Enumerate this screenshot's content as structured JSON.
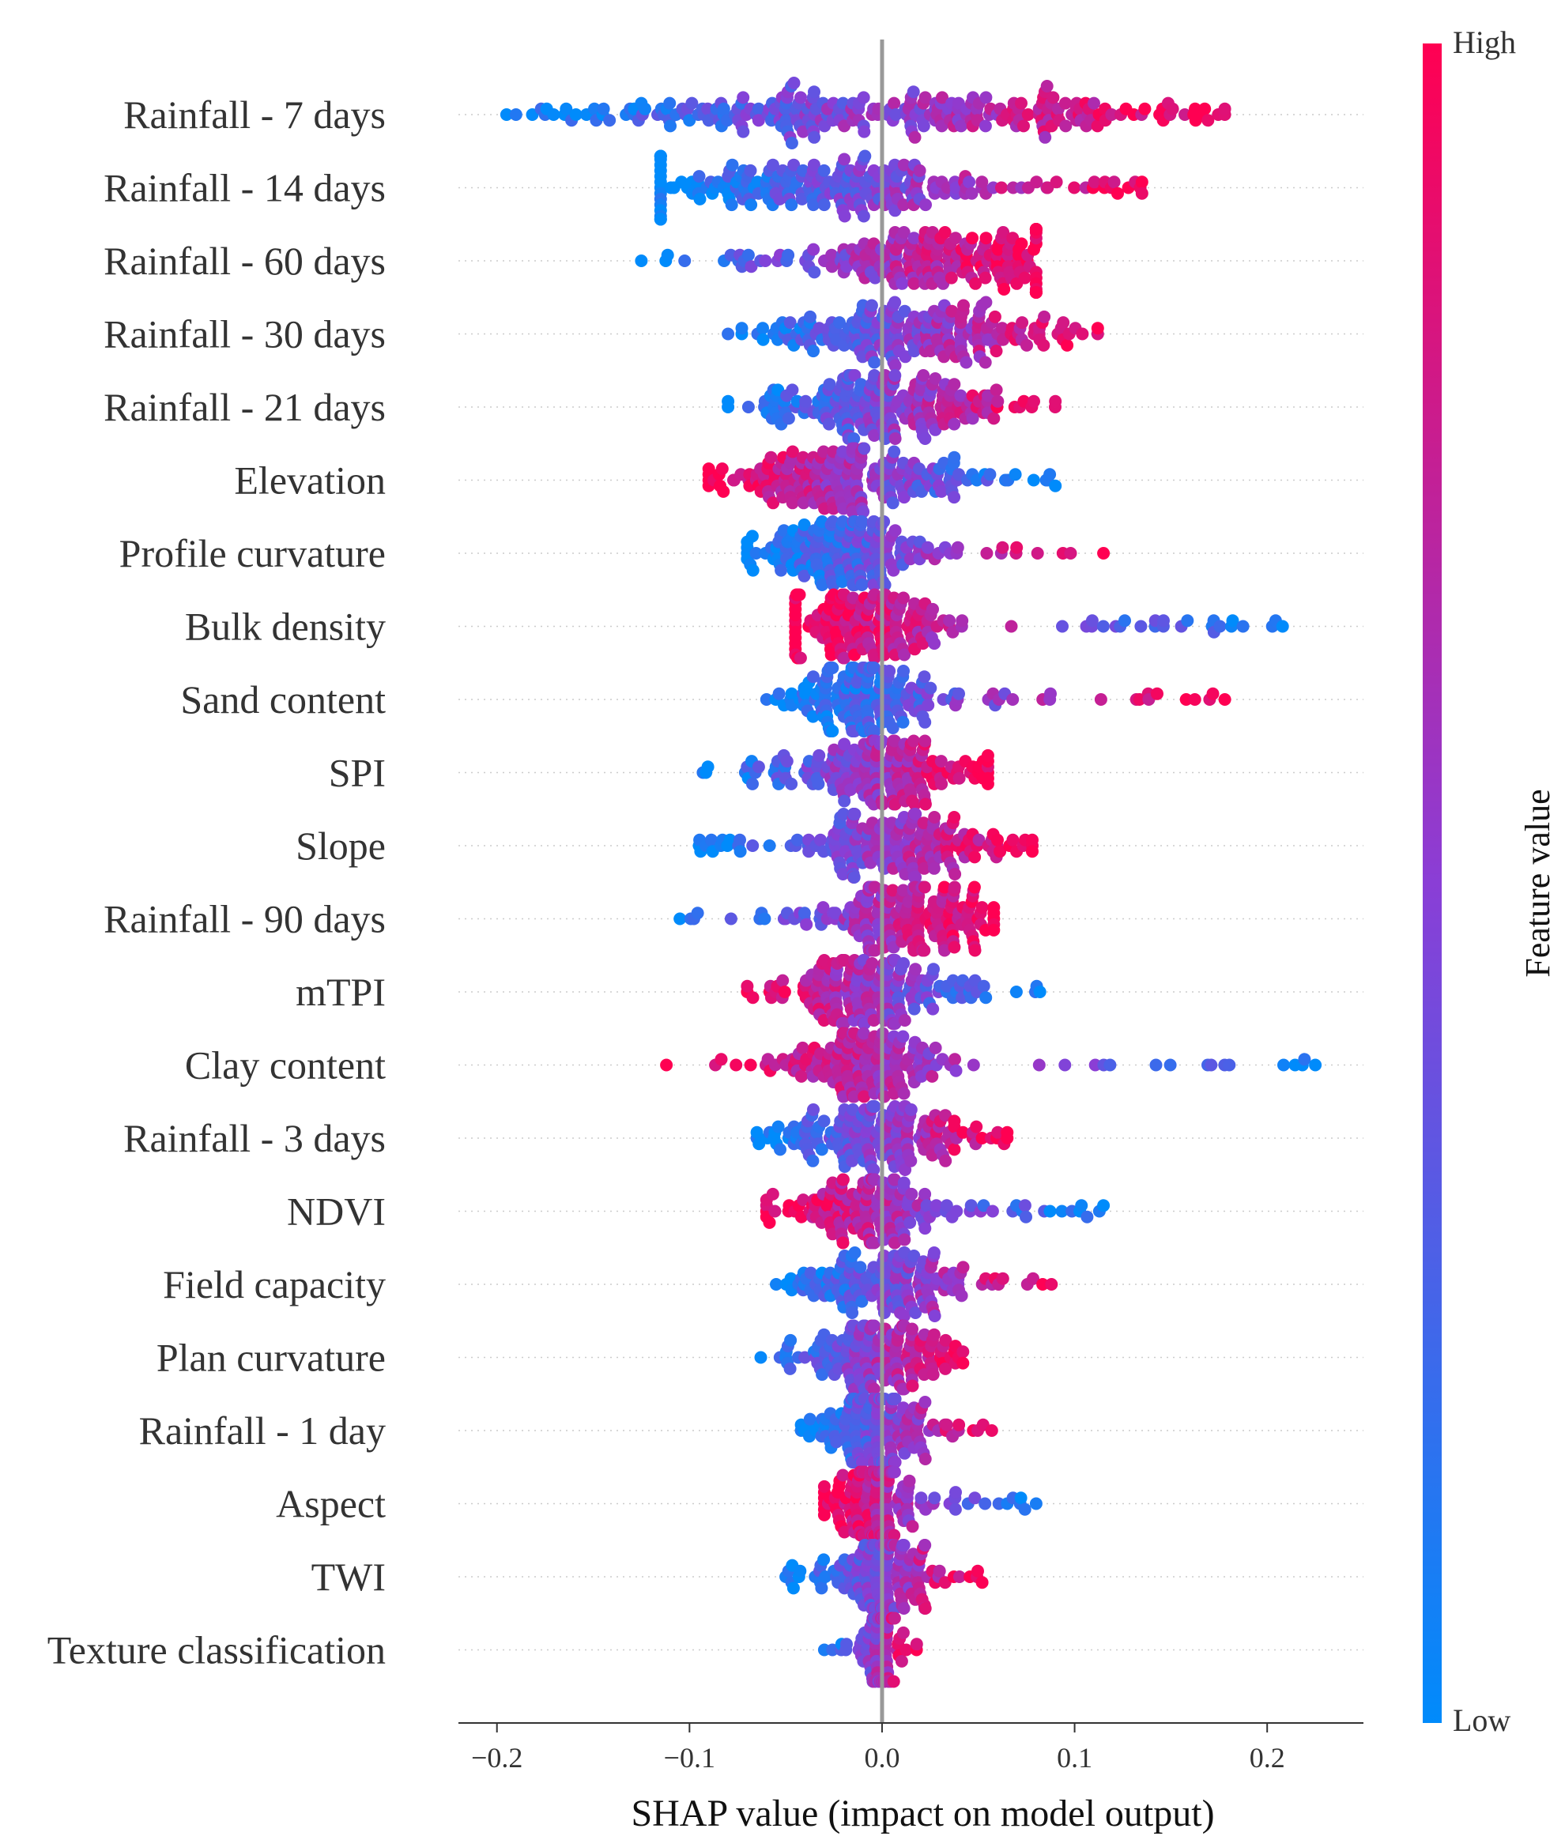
{
  "chart_data": {
    "type": "scatter",
    "subtype": "shap-beeswarm",
    "title": "",
    "xlabel": "SHAP value (impact on model output)",
    "ylabel": "",
    "xlim": [
      -0.22,
      0.25
    ],
    "xticks": [
      -0.2,
      -0.1,
      0.0,
      0.1,
      0.2
    ],
    "xtick_labels": [
      "−0.2",
      "−0.1",
      "0.0",
      "0.1",
      "0.2"
    ],
    "grid": false,
    "colorbar": {
      "title": "Feature value",
      "high_label": "High",
      "low_label": "Low",
      "high_color": "#ff0052",
      "mid_color": "#8a3ed6",
      "low_color": "#008bfb"
    },
    "features": [
      {
        "name": "Rainfall - 7 days",
        "min": -0.195,
        "max": 0.178,
        "peak": 0.0,
        "spread": 0.09,
        "direction": 1,
        "points": 260
      },
      {
        "name": "Rainfall - 14 days",
        "min": -0.115,
        "max": 0.135,
        "peak": -0.03,
        "spread": 0.05,
        "direction": 1,
        "points": 220
      },
      {
        "name": "Rainfall - 60 days",
        "min": -0.125,
        "max": 0.08,
        "peak": 0.02,
        "spread": 0.04,
        "direction": 1,
        "points": 200
      },
      {
        "name": "Rainfall - 30 days",
        "min": -0.08,
        "max": 0.112,
        "peak": 0.02,
        "spread": 0.035,
        "direction": 1,
        "points": 200
      },
      {
        "name": "Rainfall - 21 days",
        "min": -0.08,
        "max": 0.09,
        "peak": 0.0,
        "spread": 0.035,
        "direction": 1,
        "points": 200
      },
      {
        "name": "Elevation",
        "min": -0.09,
        "max": 0.09,
        "peak": -0.02,
        "spread": 0.03,
        "direction": -1,
        "points": 200
      },
      {
        "name": "Profile curvature",
        "min": -0.07,
        "max": 0.115,
        "peak": -0.02,
        "spread": 0.025,
        "direction": 1,
        "points": 180
      },
      {
        "name": "Bulk density",
        "min": -0.045,
        "max": 0.208,
        "peak": -0.01,
        "spread": 0.02,
        "direction": -1,
        "points": 180
      },
      {
        "name": "Sand content",
        "min": -0.06,
        "max": 0.178,
        "peak": -0.01,
        "spread": 0.02,
        "direction": 1,
        "points": 180
      },
      {
        "name": "SPI",
        "min": -0.093,
        "max": 0.055,
        "peak": 0.0,
        "spread": 0.025,
        "direction": 1,
        "points": 180
      },
      {
        "name": "Slope",
        "min": -0.095,
        "max": 0.078,
        "peak": 0.01,
        "spread": 0.025,
        "direction": 1,
        "points": 180
      },
      {
        "name": "Rainfall - 90 days",
        "min": -0.105,
        "max": 0.058,
        "peak": 0.01,
        "spread": 0.025,
        "direction": 1,
        "points": 180
      },
      {
        "name": "mTPI",
        "min": -0.07,
        "max": 0.082,
        "peak": -0.01,
        "spread": 0.025,
        "direction": -1,
        "points": 180
      },
      {
        "name": "Clay content",
        "min": -0.112,
        "max": 0.225,
        "peak": -0.01,
        "spread": 0.02,
        "direction": -1,
        "points": 170
      },
      {
        "name": "Rainfall - 3 days",
        "min": -0.065,
        "max": 0.065,
        "peak": 0.0,
        "spread": 0.025,
        "direction": 1,
        "points": 170
      },
      {
        "name": "NDVI",
        "min": -0.06,
        "max": 0.115,
        "peak": -0.005,
        "spread": 0.02,
        "direction": -1,
        "points": 170
      },
      {
        "name": "Field capacity",
        "min": -0.055,
        "max": 0.088,
        "peak": 0.0,
        "spread": 0.02,
        "direction": 1,
        "points": 150
      },
      {
        "name": "Plan curvature",
        "min": -0.063,
        "max": 0.042,
        "peak": 0.0,
        "spread": 0.018,
        "direction": 1,
        "points": 150
      },
      {
        "name": "Rainfall - 1 day",
        "min": -0.042,
        "max": 0.057,
        "peak": -0.005,
        "spread": 0.015,
        "direction": 1,
        "points": 150
      },
      {
        "name": "Aspect",
        "min": -0.03,
        "max": 0.08,
        "peak": -0.005,
        "spread": 0.012,
        "direction": -1,
        "points": 150
      },
      {
        "name": "TWI",
        "min": -0.05,
        "max": 0.052,
        "peak": 0.0,
        "spread": 0.012,
        "direction": 1,
        "points": 150
      },
      {
        "name": "Texture classification",
        "min": -0.03,
        "max": 0.018,
        "peak": 0.0,
        "spread": 0.005,
        "direction": 1,
        "points": 110
      }
    ]
  }
}
